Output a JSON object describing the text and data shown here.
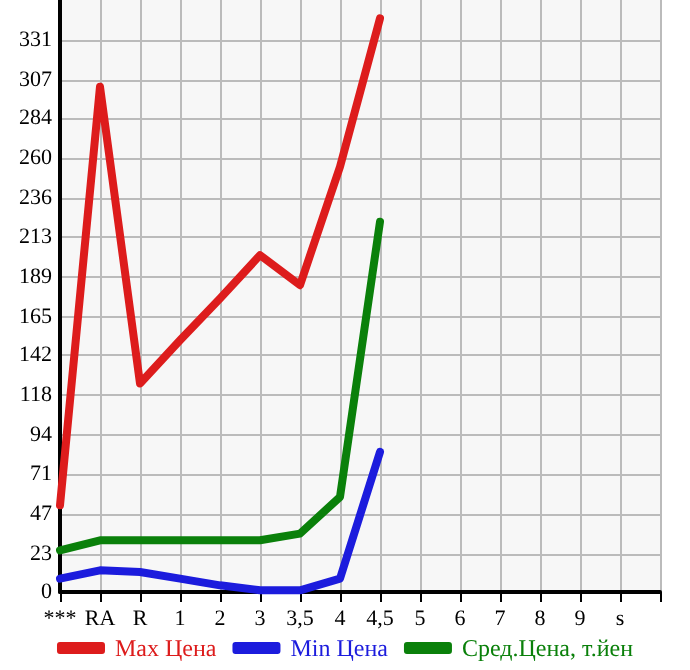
{
  "chart_data": {
    "type": "line",
    "categories": [
      "***",
      "RA",
      "R",
      "1",
      "2",
      "3",
      "3,5",
      "4",
      "4,5",
      "5",
      "6",
      "7",
      "8",
      "9",
      "s",
      null
    ],
    "series": [
      {
        "name": "Max Цена",
        "color": "#dd1c1c",
        "values": [
          52,
          303,
          125,
          151,
          176,
          202,
          184,
          255,
          344,
          null,
          null,
          null,
          null,
          null,
          null,
          null
        ]
      },
      {
        "name": "Min Цена",
        "color": "#1c1cdd",
        "values": [
          8,
          13,
          12,
          8,
          4,
          1,
          1,
          8,
          84,
          null,
          null,
          null,
          null,
          null,
          null,
          null
        ]
      },
      {
        "name": "Сред.Цена, т.йен",
        "color": "#0a800a",
        "values": [
          25,
          31,
          31,
          31,
          31,
          31,
          35,
          57,
          222,
          null,
          null,
          null,
          null,
          null,
          null,
          null
        ]
      }
    ],
    "ylim": [
      0,
      355
    ],
    "yticks": [
      0,
      23,
      47,
      71,
      94,
      118,
      142,
      165,
      189,
      213,
      236,
      260,
      284,
      307,
      331
    ],
    "grid": true,
    "legend": "bottom",
    "marker": "none",
    "line_style": "solid"
  }
}
